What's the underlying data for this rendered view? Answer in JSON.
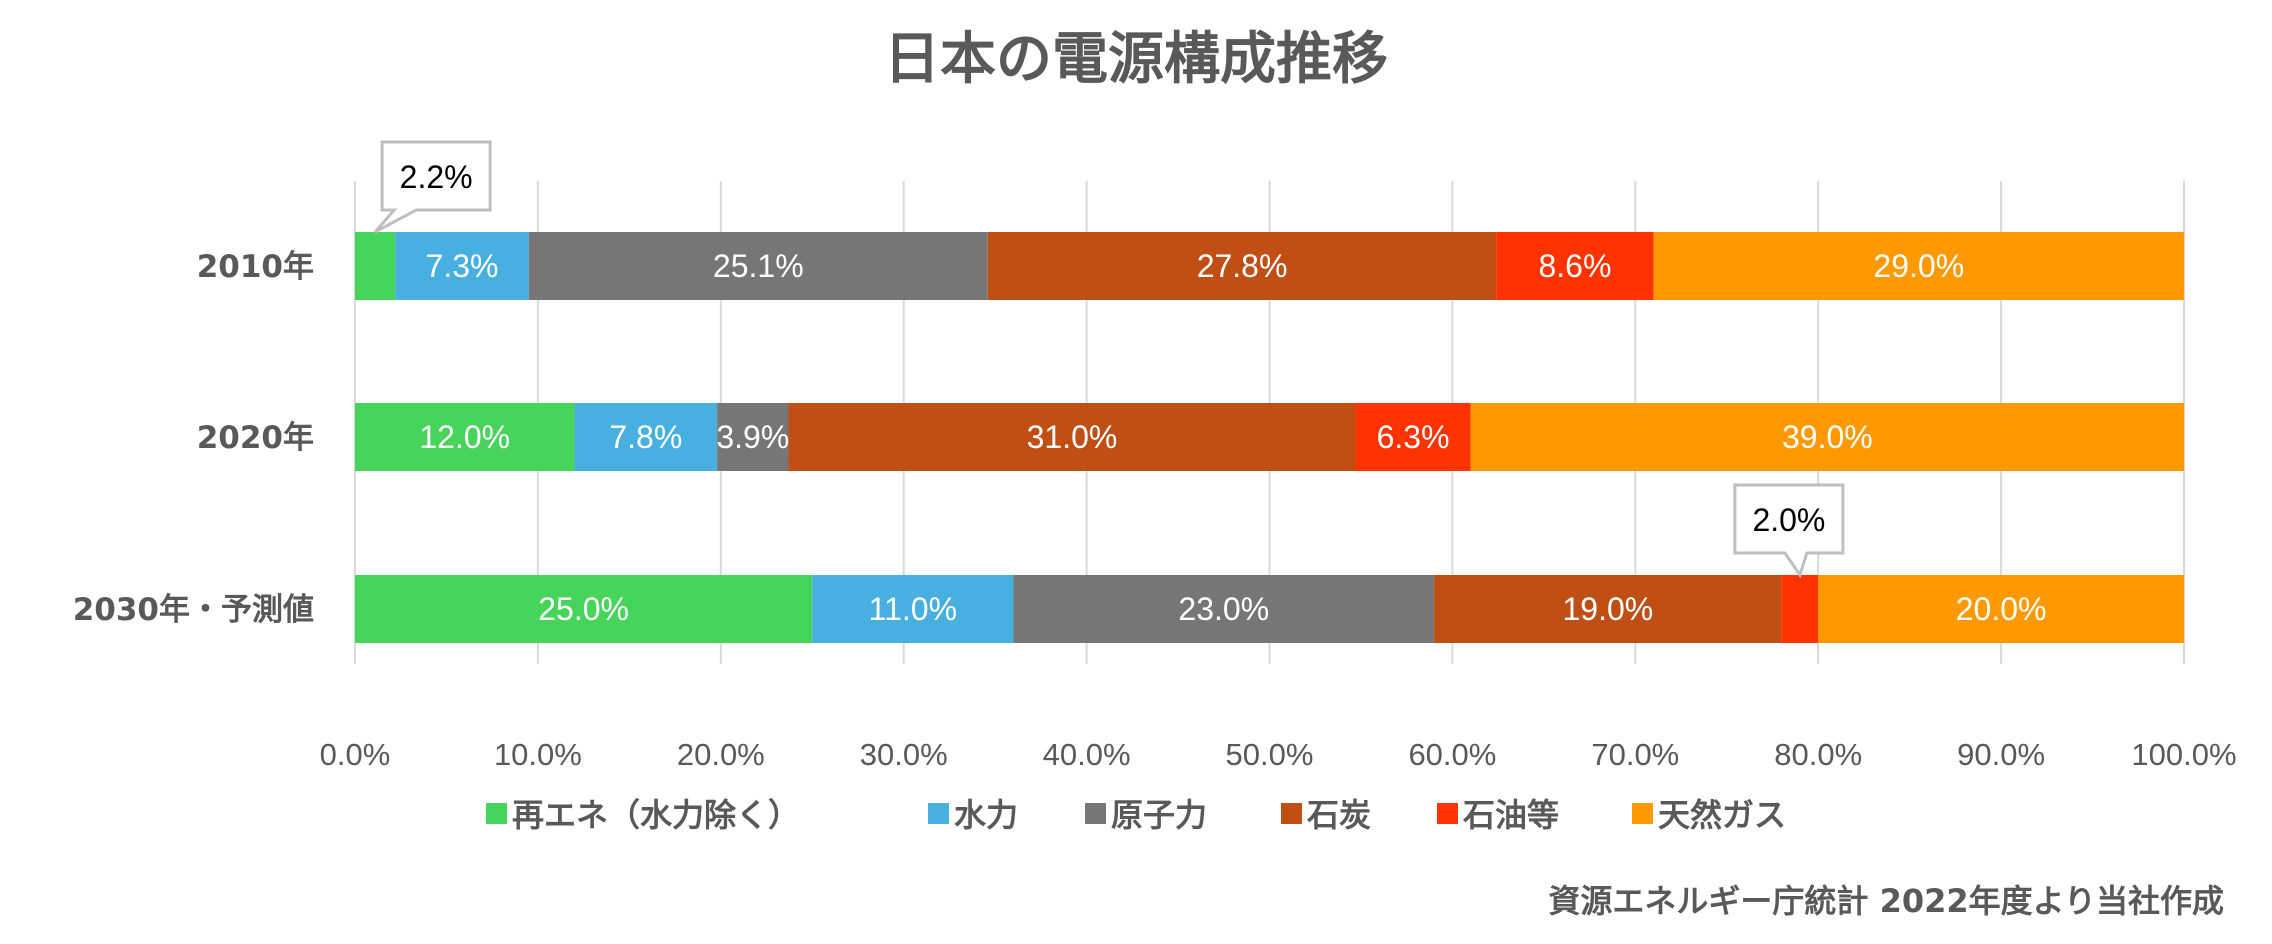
{
  "chart_data": {
    "type": "bar",
    "orientation": "horizontal",
    "stacked": true,
    "title": "日本の電源構成推移",
    "categories": [
      "2010年",
      "2020年",
      "2030年・予測値"
    ],
    "series": [
      {
        "name": "再エネ（水力除く）",
        "color": "#47D45A",
        "values": [
          2.2,
          12.0,
          25.0
        ]
      },
      {
        "name": "水力",
        "color": "#47B0E0",
        "values": [
          7.3,
          7.8,
          11.0
        ]
      },
      {
        "name": "原子力",
        "color": "#767676",
        "values": [
          25.1,
          3.9,
          23.0
        ]
      },
      {
        "name": "石炭",
        "color": "#C04F15",
        "values": [
          27.8,
          31.0,
          19.0
        ]
      },
      {
        "name": "石油等",
        "color": "#FF3300",
        "values": [
          8.6,
          6.3,
          2.0
        ]
      },
      {
        "name": "天然ガス",
        "color": "#FF9900",
        "values": [
          29.0,
          39.0,
          20.0
        ]
      }
    ],
    "data_labels": [
      [
        "2.2%",
        "7.3%",
        "25.1%",
        "27.8%",
        "8.6%",
        "29.0%"
      ],
      [
        "12.0%",
        "7.8%",
        "3.9%",
        "31.0%",
        "6.3%",
        "39.0%"
      ],
      [
        "25.0%",
        "11.0%",
        "23.0%",
        "19.0%",
        "2.0%",
        "20.0%"
      ]
    ],
    "callouts": [
      [
        0,
        0
      ],
      [
        2,
        4
      ]
    ],
    "xlim": [
      0,
      100
    ],
    "xticks": [
      "0.0%",
      "10.0%",
      "20.0%",
      "30.0%",
      "40.0%",
      "50.0%",
      "60.0%",
      "70.0%",
      "80.0%",
      "90.0%",
      "100.0%"
    ],
    "grid": true,
    "legend_position": "bottom",
    "xlabel": "",
    "ylabel": ""
  },
  "source_note": "資源エネルギー庁統計 2022年度より当社作成"
}
